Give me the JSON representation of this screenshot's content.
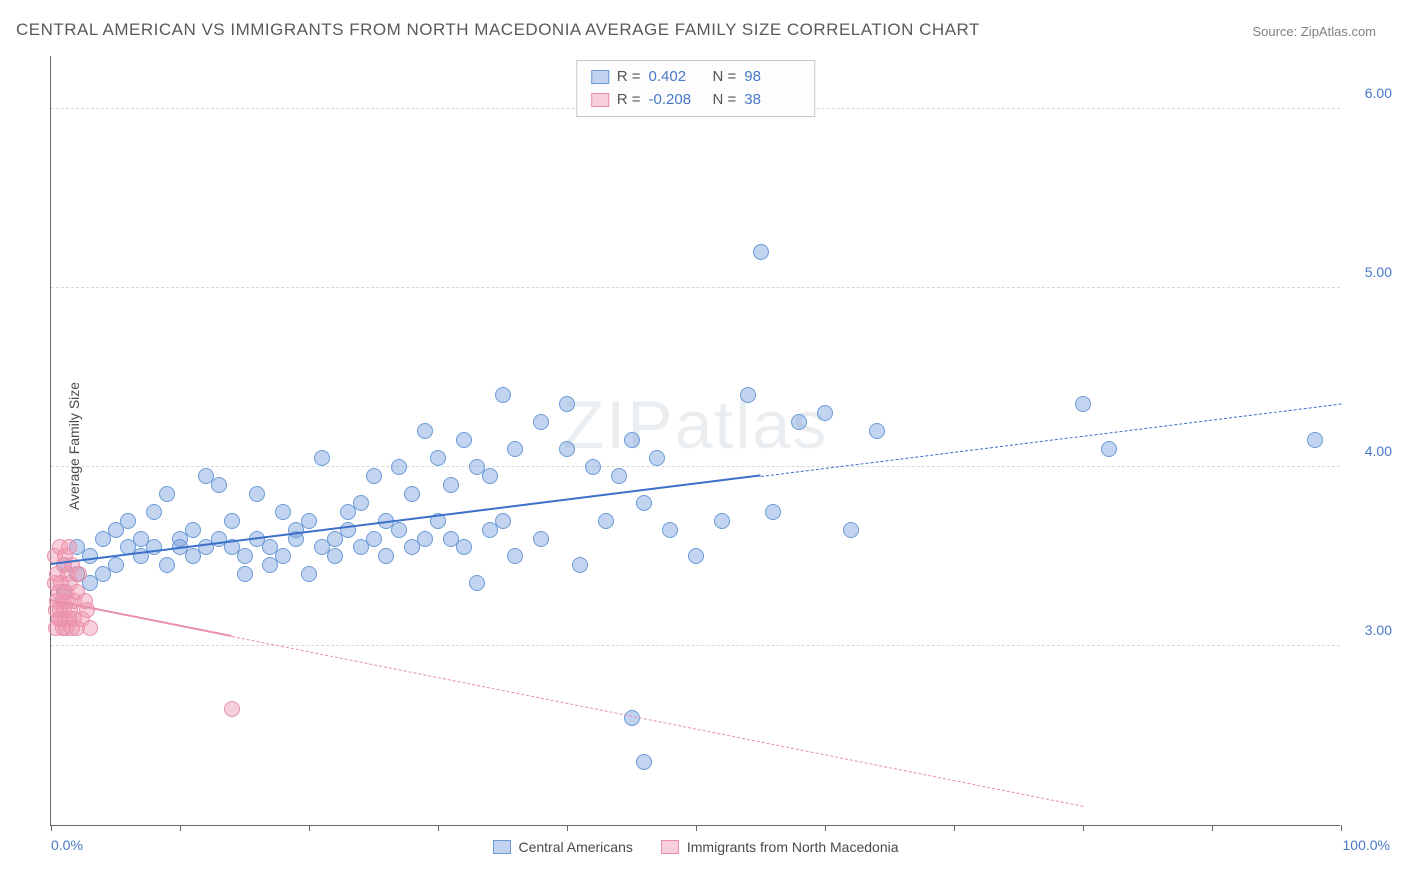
{
  "title": "CENTRAL AMERICAN VS IMMIGRANTS FROM NORTH MACEDONIA AVERAGE FAMILY SIZE CORRELATION CHART",
  "source": "Source: ZipAtlas.com",
  "ylabel": "Average Family Size",
  "watermark": "ZIPatlas",
  "chart": {
    "type": "scatter",
    "xlim": [
      0,
      100
    ],
    "ylim": [
      2.0,
      6.3
    ],
    "y_ticks": [
      3.0,
      4.0,
      5.0,
      6.0
    ],
    "y_tick_labels": [
      "3.00",
      "4.00",
      "5.00",
      "6.00"
    ],
    "x_tick_positions": [
      0,
      10,
      20,
      30,
      40,
      50,
      60,
      70,
      80,
      90,
      100
    ],
    "x_min_label": "0.0%",
    "x_max_label": "100.0%",
    "grid_color": "#d8d8d8",
    "background_color": "#ffffff",
    "marker_radius": 8
  },
  "series": [
    {
      "name": "Central Americans",
      "fill": "rgba(120,160,220,0.45)",
      "stroke": "#6b9bd8",
      "trend_color": "#3b6fc9",
      "R": "0.402",
      "N": "98",
      "trend": {
        "x1": 0,
        "y1": 3.45,
        "x2": 100,
        "y2": 4.35,
        "solid_until": 55
      },
      "points": [
        [
          1,
          3.3
        ],
        [
          1,
          3.45
        ],
        [
          2,
          3.55
        ],
        [
          2,
          3.4
        ],
        [
          3,
          3.5
        ],
        [
          3,
          3.35
        ],
        [
          4,
          3.6
        ],
        [
          4,
          3.4
        ],
        [
          5,
          3.45
        ],
        [
          5,
          3.65
        ],
        [
          6,
          3.55
        ],
        [
          6,
          3.7
        ],
        [
          7,
          3.5
        ],
        [
          7,
          3.6
        ],
        [
          8,
          3.55
        ],
        [
          8,
          3.75
        ],
        [
          9,
          3.45
        ],
        [
          9,
          3.85
        ],
        [
          10,
          3.6
        ],
        [
          10,
          3.55
        ],
        [
          11,
          3.5
        ],
        [
          11,
          3.65
        ],
        [
          12,
          3.95
        ],
        [
          12,
          3.55
        ],
        [
          13,
          3.9
        ],
        [
          13,
          3.6
        ],
        [
          14,
          3.55
        ],
        [
          14,
          3.7
        ],
        [
          15,
          3.5
        ],
        [
          15,
          3.4
        ],
        [
          16,
          3.85
        ],
        [
          16,
          3.6
        ],
        [
          17,
          3.55
        ],
        [
          17,
          3.45
        ],
        [
          18,
          3.75
        ],
        [
          18,
          3.5
        ],
        [
          19,
          3.6
        ],
        [
          19,
          3.65
        ],
        [
          20,
          3.4
        ],
        [
          20,
          3.7
        ],
        [
          21,
          3.55
        ],
        [
          21,
          4.05
        ],
        [
          22,
          3.6
        ],
        [
          22,
          3.5
        ],
        [
          23,
          3.65
        ],
        [
          23,
          3.75
        ],
        [
          24,
          3.55
        ],
        [
          24,
          3.8
        ],
        [
          25,
          3.95
        ],
        [
          25,
          3.6
        ],
        [
          26,
          3.5
        ],
        [
          26,
          3.7
        ],
        [
          27,
          4.0
        ],
        [
          27,
          3.65
        ],
        [
          28,
          3.55
        ],
        [
          28,
          3.85
        ],
        [
          29,
          3.6
        ],
        [
          29,
          4.2
        ],
        [
          30,
          4.05
        ],
        [
          30,
          3.7
        ],
        [
          31,
          3.6
        ],
        [
          31,
          3.9
        ],
        [
          32,
          4.15
        ],
        [
          32,
          3.55
        ],
        [
          33,
          4.0
        ],
        [
          33,
          3.35
        ],
        [
          34,
          3.95
        ],
        [
          34,
          3.65
        ],
        [
          35,
          4.4
        ],
        [
          35,
          3.7
        ],
        [
          36,
          4.1
        ],
        [
          36,
          3.5
        ],
        [
          38,
          4.25
        ],
        [
          38,
          3.6
        ],
        [
          40,
          4.1
        ],
        [
          40,
          4.35
        ],
        [
          41,
          3.45
        ],
        [
          42,
          4.0
        ],
        [
          43,
          3.7
        ],
        [
          44,
          3.95
        ],
        [
          45,
          2.6
        ],
        [
          45,
          4.15
        ],
        [
          46,
          2.35
        ],
        [
          46,
          3.8
        ],
        [
          47,
          4.05
        ],
        [
          48,
          3.65
        ],
        [
          50,
          3.5
        ],
        [
          52,
          3.7
        ],
        [
          54,
          4.4
        ],
        [
          55,
          5.2
        ],
        [
          56,
          3.75
        ],
        [
          58,
          4.25
        ],
        [
          60,
          4.3
        ],
        [
          62,
          3.65
        ],
        [
          64,
          4.2
        ],
        [
          80,
          4.35
        ],
        [
          82,
          4.1
        ],
        [
          98,
          4.15
        ]
      ]
    },
    {
      "name": "Immigrants from North Macedonia",
      "fill": "rgba(240,150,175,0.45)",
      "stroke": "#e98fab",
      "trend_color": "#e98fab",
      "R": "-0.208",
      "N": "38",
      "trend": {
        "x1": 0,
        "y1": 3.25,
        "x2": 80,
        "y2": 2.1,
        "solid_until": 14
      },
      "points": [
        [
          0.3,
          3.5
        ],
        [
          0.3,
          3.35
        ],
        [
          0.4,
          3.2
        ],
        [
          0.4,
          3.1
        ],
        [
          0.5,
          3.4
        ],
        [
          0.5,
          3.25
        ],
        [
          0.6,
          3.15
        ],
        [
          0.6,
          3.3
        ],
        [
          0.7,
          3.55
        ],
        [
          0.7,
          3.2
        ],
        [
          0.8,
          3.15
        ],
        [
          0.8,
          3.35
        ],
        [
          0.9,
          3.1
        ],
        [
          0.9,
          3.25
        ],
        [
          1.0,
          3.45
        ],
        [
          1.0,
          3.2
        ],
        [
          1.1,
          3.15
        ],
        [
          1.1,
          3.5
        ],
        [
          1.2,
          3.3
        ],
        [
          1.2,
          3.1
        ],
        [
          1.3,
          3.25
        ],
        [
          1.3,
          3.4
        ],
        [
          1.4,
          3.15
        ],
        [
          1.4,
          3.55
        ],
        [
          1.5,
          3.2
        ],
        [
          1.5,
          3.35
        ],
        [
          1.6,
          3.1
        ],
        [
          1.6,
          3.45
        ],
        [
          1.8,
          3.25
        ],
        [
          1.8,
          3.15
        ],
        [
          2.0,
          3.3
        ],
        [
          2.0,
          3.1
        ],
        [
          2.2,
          3.4
        ],
        [
          2.4,
          3.15
        ],
        [
          2.6,
          3.25
        ],
        [
          2.8,
          3.2
        ],
        [
          3.0,
          3.1
        ],
        [
          14.0,
          2.65
        ]
      ]
    }
  ],
  "legend_bottom": [
    {
      "label": "Central Americans",
      "fill": "rgba(120,160,220,0.45)",
      "stroke": "#6b9bd8"
    },
    {
      "label": "Immigrants from North Macedonia",
      "fill": "rgba(240,150,175,0.45)",
      "stroke": "#e98fab"
    }
  ]
}
